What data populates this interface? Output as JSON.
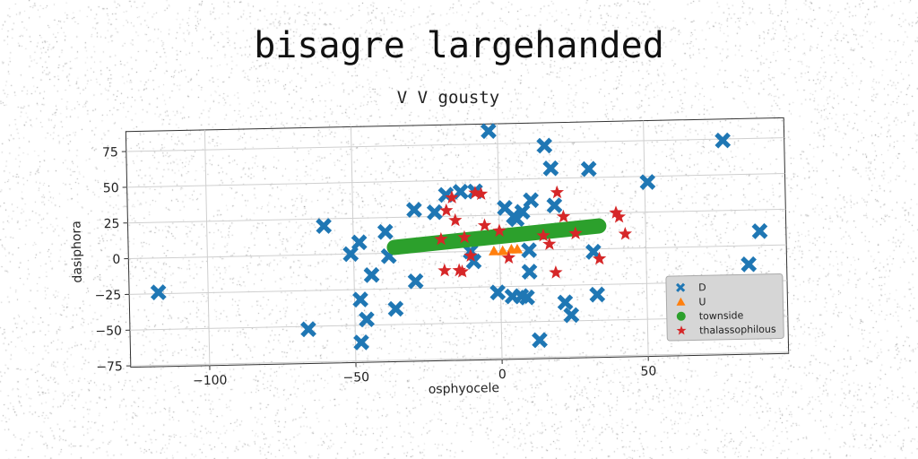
{
  "title": "bisagre largehanded",
  "subtitle": "V V gousty",
  "chart_data": {
    "type": "scatter",
    "xlabel": "osphyocele",
    "ylabel": "dasiphora",
    "xlim": [
      -127,
      98
    ],
    "ylim": [
      -76,
      89
    ],
    "xticks": [
      -100,
      -50,
      0,
      50
    ],
    "yticks": [
      -75,
      -50,
      -25,
      0,
      25,
      50,
      75
    ],
    "grid": true,
    "legend_position": "lower-right",
    "series": [
      {
        "name": "D",
        "marker": "x",
        "color": "#1f77b4",
        "points": [
          [
            -117,
            -24
          ],
          [
            -66,
            -52
          ],
          [
            -60,
            20
          ],
          [
            -51,
            0
          ],
          [
            -48,
            8
          ],
          [
            -48,
            -32
          ],
          [
            -48,
            -62
          ],
          [
            -46,
            -46
          ],
          [
            -44,
            -15
          ],
          [
            -39,
            15
          ],
          [
            -38,
            -2
          ],
          [
            -36,
            -39
          ],
          [
            -29,
            -20
          ],
          [
            -29,
            30
          ],
          [
            -22,
            28
          ],
          [
            -18,
            40
          ],
          [
            -13,
            42
          ],
          [
            -10,
            0
          ],
          [
            -9,
            -7
          ],
          [
            -8,
            42
          ],
          [
            -3,
            84
          ],
          [
            -1,
            -29
          ],
          [
            2,
            30
          ],
          [
            4,
            -32
          ],
          [
            5,
            24
          ],
          [
            6,
            22
          ],
          [
            7,
            -32
          ],
          [
            8,
            27
          ],
          [
            9,
            -33
          ],
          [
            10,
            -15
          ],
          [
            10,
            0
          ],
          [
            11,
            35
          ],
          [
            13,
            -63
          ],
          [
            16,
            73
          ],
          [
            18,
            57
          ],
          [
            19,
            31
          ],
          [
            22,
            -37
          ],
          [
            24,
            -46
          ],
          [
            31,
            56
          ],
          [
            32,
            -2
          ],
          [
            33,
            -32
          ],
          [
            51,
            46
          ],
          [
            77,
            74
          ],
          [
            85,
            -13
          ],
          [
            89,
            10
          ]
        ]
      },
      {
        "name": "U",
        "marker": "triangle",
        "color": "#ff7f0e",
        "points": [
          [
            -2,
            0
          ],
          [
            1,
            0
          ],
          [
            4,
            1
          ],
          [
            6,
            1
          ]
        ]
      },
      {
        "name": "townside",
        "marker": "circle",
        "color": "#2ca02c",
        "line": [
          [
            -36,
            4
          ],
          [
            34,
            16
          ]
        ]
      },
      {
        "name": "thalassophilous",
        "marker": "star",
        "color": "#d62728",
        "points": [
          [
            -20,
            9
          ],
          [
            -19,
            -13
          ],
          [
            -18,
            29
          ],
          [
            -16,
            38
          ],
          [
            -15,
            22
          ],
          [
            -14,
            -13
          ],
          [
            -13,
            -14
          ],
          [
            -12,
            10
          ],
          [
            -10,
            -3
          ],
          [
            -8,
            41
          ],
          [
            -6,
            40
          ],
          [
            -5,
            18
          ],
          [
            0,
            14
          ],
          [
            3,
            -5
          ],
          [
            15,
            10
          ],
          [
            17,
            4
          ],
          [
            19,
            -16
          ],
          [
            20,
            40
          ],
          [
            22,
            23
          ],
          [
            26,
            11
          ],
          [
            34,
            -7
          ],
          [
            40,
            25
          ],
          [
            41,
            22
          ],
          [
            43,
            10
          ]
        ]
      }
    ]
  }
}
